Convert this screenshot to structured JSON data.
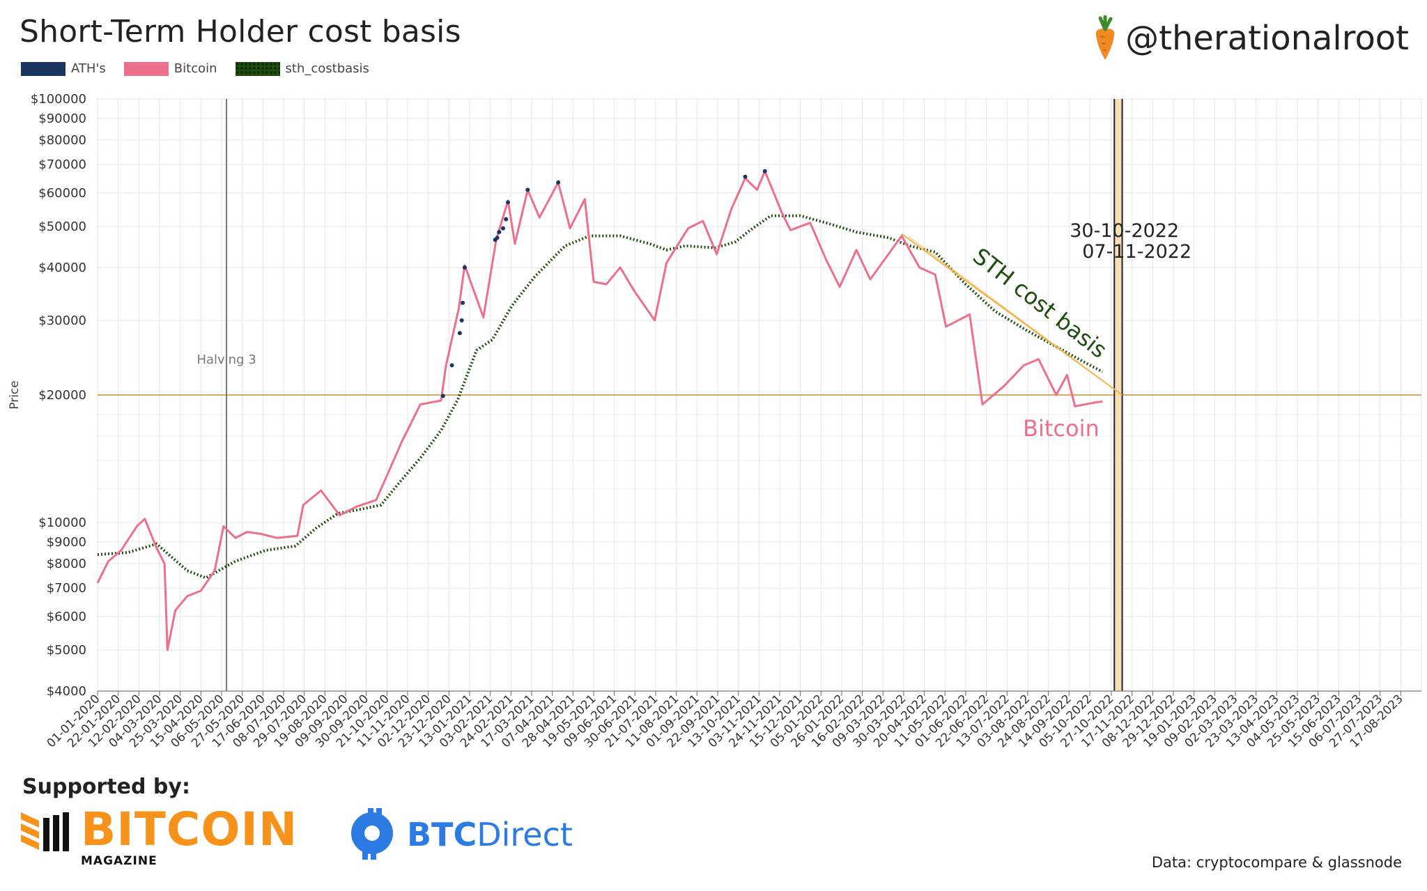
{
  "title": "Short-Term Holder cost basis",
  "handle": "@therationalroot",
  "legend": [
    {
      "label": "ATH's",
      "color": "#1a3560"
    },
    {
      "label": "Bitcoin",
      "color": "#ee6f8b"
    },
    {
      "label": "sth_costbasis",
      "color": "#1f4d10"
    }
  ],
  "footer": {
    "supported": "Supported by:",
    "sponsor1_name": "BITCOIN",
    "sponsor1_sub": "MAGAZINE",
    "sponsor2_bold": "BTC",
    "sponsor2_light": "Direct",
    "credit": "Data: cryptocompare & glassnode"
  },
  "chart_data": {
    "type": "line",
    "title": "Short-Term Holder cost basis",
    "ylabel": "Price",
    "yscale": "log",
    "ylim": [
      4000,
      100000
    ],
    "xlim": [
      "2020-01-01",
      "2023-09-07"
    ],
    "y_ticks": [
      4000,
      5000,
      6000,
      7000,
      8000,
      9000,
      10000,
      20000,
      30000,
      40000,
      50000,
      60000,
      70000,
      80000,
      90000,
      100000
    ],
    "y_tick_labels": [
      "$4000",
      "$5000",
      "$6000",
      "$7000",
      "$8000",
      "$9000",
      "$10000",
      "$20000",
      "$30000",
      "$40000",
      "$50000",
      "$60000",
      "$70000",
      "$80000",
      "$90000",
      "$100000"
    ],
    "x_tick_labels": [
      "01-01-2020",
      "22-01-2020",
      "12-02-2020",
      "04-03-2020",
      "25-03-2020",
      "15-04-2020",
      "06-05-2020",
      "27-05-2020",
      "17-06-2020",
      "08-07-2020",
      "29-07-2020",
      "19-08-2020",
      "09-09-2020",
      "30-09-2020",
      "21-10-2020",
      "11-11-2020",
      "02-12-2020",
      "23-12-2020",
      "13-01-2021",
      "03-02-2021",
      "24-02-2021",
      "17-03-2021",
      "07-04-2021",
      "28-04-2021",
      "19-05-2021",
      "09-06-2021",
      "30-06-2021",
      "21-07-2021",
      "11-08-2021",
      "01-09-2021",
      "22-09-2021",
      "13-10-2021",
      "03-11-2021",
      "24-11-2021",
      "15-12-2021",
      "05-01-2022",
      "26-01-2022",
      "16-02-2022",
      "09-03-2022",
      "30-03-2022",
      "20-04-2022",
      "11-05-2022",
      "01-06-2022",
      "22-06-2022",
      "13-07-2022",
      "03-08-2022",
      "24-08-2022",
      "14-09-2022",
      "05-10-2022",
      "27-10-2022",
      "17-11-2022",
      "08-12-2022",
      "29-12-2022",
      "19-01-2023",
      "09-02-2023",
      "02-03-2023",
      "23-03-2023",
      "13-04-2023",
      "04-05-2023",
      "25-05-2023",
      "15-06-2023",
      "06-07-2023",
      "27-07-2023",
      "17-08-2023"
    ],
    "series": [
      {
        "name": "Bitcoin",
        "color": "#ee6f8b",
        "points": [
          [
            "2020-01-01",
            7200
          ],
          [
            "2020-01-12",
            8100
          ],
          [
            "2020-01-25",
            8600
          ],
          [
            "2020-02-10",
            9800
          ],
          [
            "2020-02-18",
            10200
          ],
          [
            "2020-03-01",
            8700
          ],
          [
            "2020-03-09",
            8000
          ],
          [
            "2020-03-12",
            5000
          ],
          [
            "2020-03-20",
            6200
          ],
          [
            "2020-04-01",
            6700
          ],
          [
            "2020-04-15",
            6900
          ],
          [
            "2020-04-29",
            7700
          ],
          [
            "2020-05-08",
            9800
          ],
          [
            "2020-05-20",
            9200
          ],
          [
            "2020-06-01",
            9500
          ],
          [
            "2020-06-15",
            9400
          ],
          [
            "2020-07-01",
            9200
          ],
          [
            "2020-07-22",
            9300
          ],
          [
            "2020-07-28",
            11000
          ],
          [
            "2020-08-15",
            11900
          ],
          [
            "2020-09-03",
            10400
          ],
          [
            "2020-09-20",
            10900
          ],
          [
            "2020-10-10",
            11300
          ],
          [
            "2020-10-21",
            12900
          ],
          [
            "2020-11-05",
            15500
          ],
          [
            "2020-11-24",
            19000
          ],
          [
            "2020-12-15",
            19400
          ],
          [
            "2020-12-20",
            23500
          ],
          [
            "2021-01-02",
            32000
          ],
          [
            "2021-01-08",
            40500
          ],
          [
            "2021-01-14",
            37000
          ],
          [
            "2021-01-27",
            30500
          ],
          [
            "2021-02-09",
            46500
          ],
          [
            "2021-02-21",
            57500
          ],
          [
            "2021-02-28",
            45500
          ],
          [
            "2021-03-13",
            61000
          ],
          [
            "2021-03-25",
            52500
          ],
          [
            "2021-04-13",
            63500
          ],
          [
            "2021-04-25",
            49500
          ],
          [
            "2021-05-10",
            58000
          ],
          [
            "2021-05-19",
            37000
          ],
          [
            "2021-06-01",
            36500
          ],
          [
            "2021-06-15",
            40000
          ],
          [
            "2021-06-30",
            35000
          ],
          [
            "2021-07-20",
            30000
          ],
          [
            "2021-08-01",
            41000
          ],
          [
            "2021-08-23",
            49500
          ],
          [
            "2021-09-07",
            51500
          ],
          [
            "2021-09-21",
            43000
          ],
          [
            "2021-10-06",
            55000
          ],
          [
            "2021-10-20",
            65000
          ],
          [
            "2021-11-01",
            61000
          ],
          [
            "2021-11-09",
            67500
          ],
          [
            "2021-11-26",
            54000
          ],
          [
            "2021-12-05",
            49000
          ],
          [
            "2021-12-25",
            51000
          ],
          [
            "2022-01-10",
            41800
          ],
          [
            "2022-01-24",
            36000
          ],
          [
            "2022-02-10",
            44000
          ],
          [
            "2022-02-24",
            37500
          ],
          [
            "2022-03-28",
            47500
          ],
          [
            "2022-04-15",
            40000
          ],
          [
            "2022-05-01",
            38500
          ],
          [
            "2022-05-12",
            29000
          ],
          [
            "2022-06-05",
            31000
          ],
          [
            "2022-06-18",
            19000
          ],
          [
            "2022-07-10",
            21000
          ],
          [
            "2022-07-30",
            23500
          ],
          [
            "2022-08-14",
            24300
          ],
          [
            "2022-09-01",
            20000
          ],
          [
            "2022-09-12",
            22300
          ],
          [
            "2022-09-20",
            18800
          ],
          [
            "2022-10-10",
            19200
          ],
          [
            "2022-10-18",
            19300
          ]
        ]
      },
      {
        "name": "sth_costbasis",
        "color": "#1f4d10",
        "points": [
          [
            "2020-01-01",
            8400
          ],
          [
            "2020-02-01",
            8500
          ],
          [
            "2020-03-01",
            8900
          ],
          [
            "2020-04-01",
            7700
          ],
          [
            "2020-04-20",
            7400
          ],
          [
            "2020-05-20",
            8100
          ],
          [
            "2020-06-20",
            8600
          ],
          [
            "2020-07-20",
            8800
          ],
          [
            "2020-08-10",
            9700
          ],
          [
            "2020-09-01",
            10500
          ],
          [
            "2020-09-20",
            10700
          ],
          [
            "2020-10-15",
            11000
          ],
          [
            "2020-11-01",
            12300
          ],
          [
            "2020-11-25",
            14300
          ],
          [
            "2020-12-15",
            16500
          ],
          [
            "2021-01-01",
            19500
          ],
          [
            "2021-01-20",
            25500
          ],
          [
            "2021-02-05",
            27000
          ],
          [
            "2021-02-25",
            32500
          ],
          [
            "2021-03-20",
            38000
          ],
          [
            "2021-04-20",
            45000
          ],
          [
            "2021-05-15",
            47500
          ],
          [
            "2021-06-15",
            47500
          ],
          [
            "2021-07-15",
            45500
          ],
          [
            "2021-08-01",
            44000
          ],
          [
            "2021-08-20",
            45000
          ],
          [
            "2021-09-20",
            44500
          ],
          [
            "2021-10-10",
            46000
          ],
          [
            "2021-10-25",
            49000
          ],
          [
            "2021-11-15",
            53000
          ],
          [
            "2021-12-15",
            53000
          ],
          [
            "2022-01-10",
            51000
          ],
          [
            "2022-02-10",
            48500
          ],
          [
            "2022-03-15",
            47000
          ],
          [
            "2022-04-05",
            45000
          ],
          [
            "2022-05-01",
            43500
          ],
          [
            "2022-06-01",
            36500
          ],
          [
            "2022-07-01",
            31500
          ],
          [
            "2022-08-01",
            28500
          ],
          [
            "2022-09-01",
            26000
          ],
          [
            "2022-10-01",
            23800
          ],
          [
            "2022-10-18",
            22700
          ]
        ]
      }
    ],
    "ath_points": [
      [
        "2020-12-17",
        19900
      ],
      [
        "2020-12-26",
        23500
      ],
      [
        "2021-01-03",
        28000
      ],
      [
        "2021-01-05",
        30000
      ],
      [
        "2021-01-06",
        33000
      ],
      [
        "2021-01-08",
        40000
      ],
      [
        "2021-02-08",
        46500
      ],
      [
        "2021-02-10",
        47000
      ],
      [
        "2021-02-12",
        48500
      ],
      [
        "2021-02-16",
        49500
      ],
      [
        "2021-02-19",
        52000
      ],
      [
        "2021-02-21",
        57000
      ],
      [
        "2021-03-13",
        61000
      ],
      [
        "2021-04-13",
        63500
      ],
      [
        "2021-10-20",
        65500
      ],
      [
        "2021-11-09",
        67500
      ]
    ],
    "trendline": {
      "name": "STH cost basis trend",
      "color": "#f2b24a",
      "from": [
        "2022-03-28",
        48000
      ],
      "to": [
        "2022-11-07",
        20000
      ]
    },
    "hline": {
      "value": 20000,
      "color": "#d8a968"
    },
    "vlines": [
      {
        "date": "2020-05-11",
        "label": "Halving 3",
        "color": "#777777"
      },
      {
        "date": "2022-10-30",
        "label": "30-10-2022",
        "color": "#222222"
      },
      {
        "date": "2022-11-07",
        "label": "07-11-2022",
        "color": "#222222"
      }
    ],
    "annotations": [
      {
        "text": "STH cost basis",
        "color": "#1f4d10"
      },
      {
        "text": "Bitcoin",
        "color": "#ee6f8b"
      }
    ]
  }
}
